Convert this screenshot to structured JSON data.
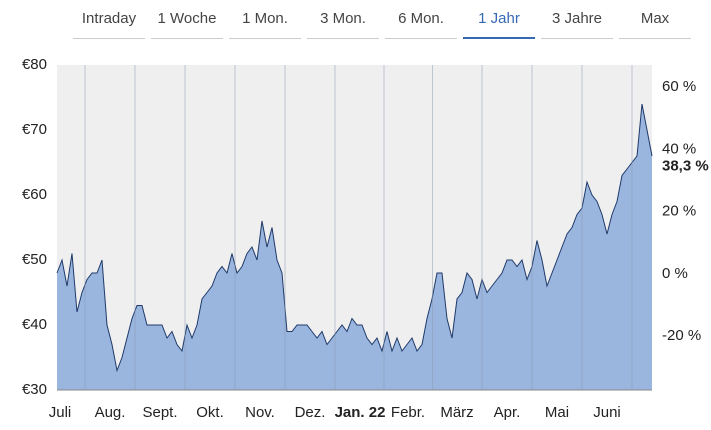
{
  "tabs": {
    "items": [
      "Intraday",
      "1 Woche",
      "1 Mon.",
      "3 Mon.",
      "6 Mon.",
      "1 Jahr",
      "3 Jahre",
      "Max"
    ],
    "active": 5
  },
  "chart_data": {
    "type": "area",
    "values": [
      48,
      50,
      46,
      51,
      42,
      45,
      47,
      48,
      48,
      50,
      40,
      37,
      33,
      35,
      38,
      41,
      43,
      43,
      40,
      40,
      40,
      40,
      38,
      39,
      37,
      36,
      40,
      38,
      40,
      44,
      45,
      46,
      48,
      49,
      48,
      51,
      48,
      49,
      51,
      52,
      50,
      56,
      52,
      55,
      50,
      48,
      39,
      39,
      40,
      40,
      40,
      39,
      38,
      39,
      37,
      38,
      39,
      40,
      39,
      41,
      40,
      40,
      38,
      37,
      38,
      36,
      39,
      36,
      38,
      36,
      37,
      38,
      36,
      37,
      41,
      44,
      48,
      48,
      41,
      38,
      44,
      45,
      48,
      47,
      44,
      47,
      45,
      46,
      47,
      48,
      50,
      50,
      49,
      50,
      47,
      49,
      53,
      50,
      46,
      48,
      50,
      52,
      54,
      55,
      57,
      58,
      62,
      60,
      59,
      57,
      54,
      57,
      59,
      63,
      64,
      65,
      66,
      74,
      70,
      66
    ],
    "color": "#9ab5de",
    "line_color": "#1f3a6a",
    "xlim": [
      0,
      119
    ],
    "xticks": [
      {
        "value": 0.6,
        "label": "Juli"
      },
      {
        "value": 10.6,
        "label": "Aug."
      },
      {
        "value": 20.6,
        "label": "Sept."
      },
      {
        "value": 30.6,
        "label": "Okt."
      },
      {
        "value": 40.6,
        "label": "Nov."
      },
      {
        "value": 50.6,
        "label": "Dez."
      },
      {
        "value": 60.6,
        "label": "Jan. 22"
      },
      {
        "value": 70.2,
        "label": "Febr."
      },
      {
        "value": 80,
        "label": "März"
      },
      {
        "value": 90,
        "label": "Apr."
      },
      {
        "value": 100,
        "label": "Mai"
      },
      {
        "value": 110,
        "label": "Juni"
      }
    ],
    "emphasized_xtick": 6,
    "ylim": [
      30,
      80
    ],
    "yticks": [
      {
        "value": 30,
        "label": "€30"
      },
      {
        "value": 40,
        "label": "€40"
      },
      {
        "value": 50,
        "label": "€50"
      },
      {
        "value": 60,
        "label": "€60"
      },
      {
        "value": 70,
        "label": "€70"
      },
      {
        "value": 80,
        "label": "€80"
      }
    ],
    "y2lim": [
      -37.3,
      67.1
    ],
    "y2ticks": [
      {
        "value": -20,
        "label": "-20 %"
      },
      {
        "value": 0,
        "label": "0 %"
      },
      {
        "value": 20,
        "label": "20 %"
      },
      {
        "value": 40,
        "label": "40 %"
      },
      {
        "value": 60,
        "label": "60 %"
      }
    ],
    "current_change": {
      "value": 38.3,
      "label": "38,3 %",
      "color": "#1a8a1a"
    }
  }
}
